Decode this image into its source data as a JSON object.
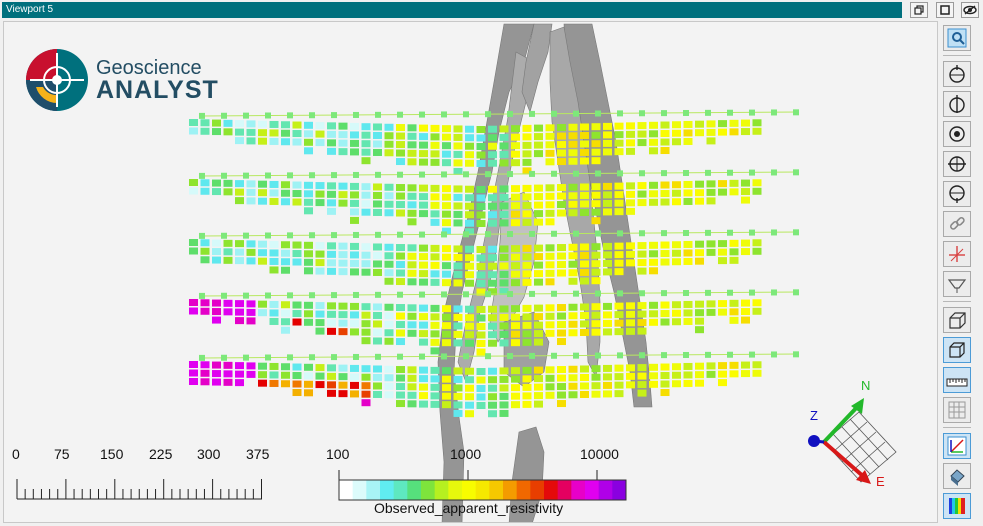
{
  "window": {
    "title": "Viewport 5",
    "buttons": [
      "restore-icon",
      "maximize-icon",
      "visibility-icon"
    ]
  },
  "logo": {
    "line1": "Geoscience",
    "line2": "ANALYST"
  },
  "scale_bar": {
    "ticks": [
      "0",
      "75",
      "150",
      "225",
      "300",
      "375"
    ]
  },
  "colorbar": {
    "title": "Observed_apparent_resistivity",
    "ticks": [
      "100",
      "1000",
      "10000"
    ],
    "colors": [
      "#ffffff",
      "#dcfbfb",
      "#a8f4f6",
      "#60ecf0",
      "#5ee8c0",
      "#56e07c",
      "#7ee43c",
      "#b6f020",
      "#e6f80c",
      "#f8fc00",
      "#f6e800",
      "#f6c800",
      "#f49c00",
      "#f06800",
      "#e83e00",
      "#e40a0a",
      "#e40060",
      "#e800c8",
      "#e000f0",
      "#b000e8",
      "#8a00e0"
    ]
  },
  "orientation": {
    "north": "N",
    "east": "E",
    "z": "Z"
  },
  "toolbar": {
    "tools": [
      "zoom-extent-icon",
      "view-top-icon",
      "view-front-icon",
      "view-center-icon",
      "view-side-icon",
      "view-bottom-icon",
      "link-icon",
      "crosshair-icon",
      "clip-icon",
      "perspective-icon",
      "box-icon",
      "ruler-icon",
      "grid-icon",
      "axis-icon",
      "shade-icon",
      "colorbar-icon"
    ]
  },
  "colors": {
    "titlebar": "#00707d",
    "body_gray": "#8e8e8e"
  }
}
